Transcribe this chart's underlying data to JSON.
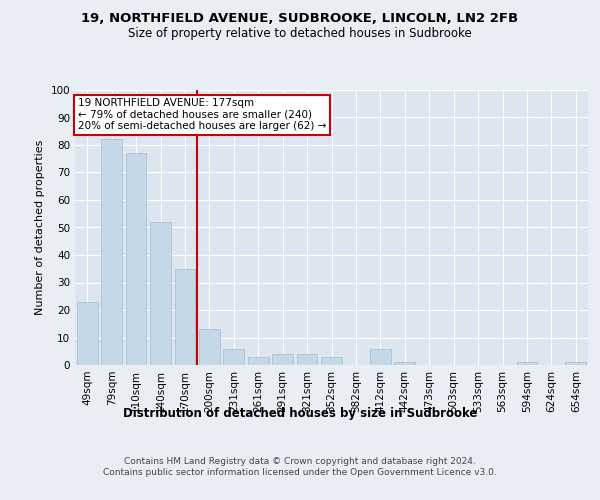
{
  "title1": "19, NORTHFIELD AVENUE, SUDBROOKE, LINCOLN, LN2 2FB",
  "title2": "Size of property relative to detached houses in Sudbrooke",
  "xlabel": "Distribution of detached houses by size in Sudbrooke",
  "ylabel": "Number of detached properties",
  "categories": [
    "49sqm",
    "79sqm",
    "110sqm",
    "140sqm",
    "170sqm",
    "200sqm",
    "231sqm",
    "261sqm",
    "291sqm",
    "321sqm",
    "352sqm",
    "382sqm",
    "412sqm",
    "442sqm",
    "473sqm",
    "503sqm",
    "533sqm",
    "563sqm",
    "594sqm",
    "624sqm",
    "654sqm"
  ],
  "values": [
    23,
    82,
    77,
    52,
    35,
    13,
    6,
    3,
    4,
    4,
    3,
    0,
    6,
    1,
    0,
    0,
    0,
    0,
    1,
    0,
    1
  ],
  "bar_color": "#c5d8e8",
  "bar_edge_color": "#a0bcd0",
  "vline_x": 4.5,
  "vline_color": "#cc0000",
  "annotation_text": "19 NORTHFIELD AVENUE: 177sqm\n← 79% of detached houses are smaller (240)\n20% of semi-detached houses are larger (62) →",
  "annotation_box_color": "#ffffff",
  "annotation_border_color": "#cc0000",
  "ylim": [
    0,
    100
  ],
  "yticks": [
    0,
    10,
    20,
    30,
    40,
    50,
    60,
    70,
    80,
    90,
    100
  ],
  "bg_color": "#e8eef4",
  "plot_bg_color": "#dde6f0",
  "footer": "Contains HM Land Registry data © Crown copyright and database right 2024.\nContains public sector information licensed under the Open Government Licence v3.0.",
  "title1_fontsize": 9.5,
  "title2_fontsize": 8.5,
  "xlabel_fontsize": 8.5,
  "ylabel_fontsize": 8,
  "tick_fontsize": 7.5,
  "annotation_fontsize": 7.5,
  "footer_fontsize": 6.5
}
